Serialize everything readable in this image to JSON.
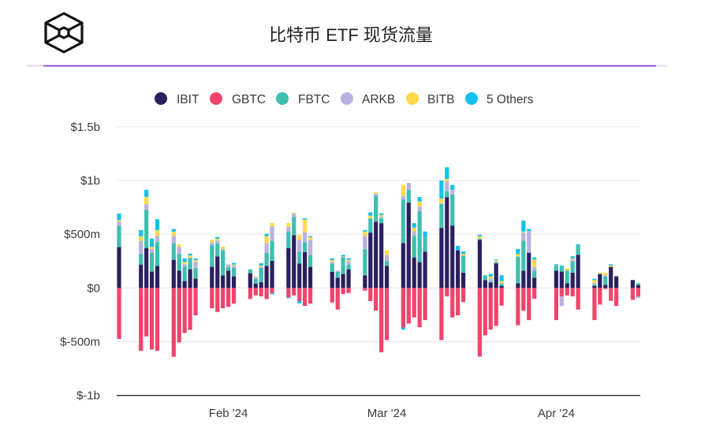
{
  "header": {
    "title": "比特币 ETF 现货流量",
    "logo": "hexagon-cube-logo"
  },
  "colors": {
    "accent_line": "#8a1fd6",
    "accent_line_light": "#e2c2f5"
  },
  "chart_data": {
    "type": "bar",
    "stacked": true,
    "title": "比特币 ETF 现货流量",
    "unit": "$M",
    "ylim": [
      -1000,
      1500
    ],
    "yticks": [
      {
        "value": 1500,
        "label": "$1.5b"
      },
      {
        "value": 1000,
        "label": "$1b"
      },
      {
        "value": 500,
        "label": "$500m"
      },
      {
        "value": 0,
        "label": "$0"
      },
      {
        "value": -500,
        "label": "$-500m"
      },
      {
        "value": -1000,
        "label": "$-1b"
      }
    ],
    "xticks": [
      {
        "date": "2024-02-01",
        "label": "Feb '24"
      },
      {
        "date": "2024-03-01",
        "label": "Mar '24"
      },
      {
        "date": "2024-04-01",
        "label": "Apr '24"
      }
    ],
    "grid": true,
    "legend_position": "top",
    "series": [
      {
        "name": "IBIT",
        "color": "#2a2060",
        "values": [
          382,
          218,
          372,
          152,
          206,
          262,
          162,
          64,
          174,
          88,
          198,
          294,
          118,
          162,
          108,
          137,
          39,
          54,
          206,
          252,
          372,
          492,
          228,
          333,
          196,
          149,
          96,
          130,
          174,
          118,
          515,
          617,
          603,
          206,
          417,
          794,
          284,
          240,
          338,
          559,
          845,
          581,
          350,
          142,
          448,
          74,
          51,
          228,
          20,
          44,
          162,
          328,
          96,
          162,
          152,
          44,
          142,
          309,
          20,
          130,
          29,
          196,
          108,
          74,
          27
        ]
      },
      {
        "name": "GBTC",
        "color": "#f0446a",
        "values": [
          -475,
          -585,
          -451,
          -573,
          -585,
          -640,
          -507,
          -419,
          -390,
          -255,
          -189,
          -223,
          -189,
          -176,
          -145,
          -103,
          -69,
          -78,
          -103,
          -47,
          -88,
          -69,
          -122,
          -167,
          -145,
          -135,
          -201,
          -56,
          -47,
          -25,
          -122,
          -211,
          -598,
          -485,
          -368,
          -331,
          -274,
          -365,
          -299,
          -485,
          -78,
          -274,
          -255,
          -132,
          -639,
          -441,
          -387,
          -353,
          -164,
          -346,
          -211,
          -299,
          -100,
          -299,
          -78,
          -69,
          -78,
          -201,
          -299,
          -154,
          -10,
          -120,
          -167,
          -110,
          -78
        ]
      },
      {
        "name": "FBTC",
        "color": "#3dbfb0",
        "values": [
          196,
          98,
          353,
          176,
          220,
          154,
          154,
          135,
          103,
          98,
          203,
          122,
          233,
          32,
          78,
          37,
          44,
          132,
          122,
          186,
          152,
          167,
          110,
          93,
          110,
          78,
          54,
          154,
          44,
          243,
          132,
          240,
          44,
          44,
          407,
          118,
          201,
          473,
          132,
          223,
          56,
          287,
          0,
          157,
          10,
          44,
          10,
          12,
          22,
          250,
          277,
          0,
          66,
          42,
          44,
          118,
          108,
          88,
          10,
          0,
          78,
          0,
          0,
          0,
          7
        ]
      },
      {
        "name": "ARKB",
        "color": "#b9b1e2",
        "values": [
          42,
          122,
          54,
          34,
          59,
          69,
          66,
          22,
          5,
          56,
          22,
          25,
          12,
          25,
          20,
          0,
          17,
          10,
          88,
          132,
          44,
          32,
          110,
          91,
          142,
          15,
          12,
          12,
          32,
          122,
          0,
          20,
          15,
          56,
          32,
          66,
          42,
          44,
          0,
          7,
          88,
          47,
          0,
          0,
          0,
          0,
          25,
          7,
          0,
          0,
          76,
          201,
          32,
          7,
          -91,
          0,
          15,
          0,
          15,
          0,
          10,
          0,
          5,
          0,
          -15
        ]
      },
      {
        "name": "BITB",
        "color": "#fcd94a",
        "values": [
          12,
          42,
          69,
          20,
          54,
          39,
          25,
          20,
          20,
          17,
          25,
          17,
          20,
          0,
          12,
          0,
          7,
          12,
          66,
          34,
          37,
          10,
          47,
          120,
          25,
          17,
          0,
          0,
          12,
          42,
          25,
          15,
          17,
          44,
          103,
          0,
          34,
          47,
          0,
          44,
          25,
          0,
          0,
          17,
          22,
          0,
          20,
          12,
          22,
          22,
          10,
          0,
          71,
          0,
          0,
          22,
          10,
          0,
          29,
          12,
          25,
          12,
          0,
          0,
          0
        ]
      },
      {
        "name": "5 Others",
        "color": "#11c2ee",
        "values": [
          61,
          59,
          66,
          78,
          100,
          25,
          0,
          34,
          17,
          15,
          0,
          17,
          0,
          0,
          15,
          0,
          0,
          22,
          22,
          -12,
          -8,
          0,
          -22,
          12,
          10,
          17,
          0,
          12,
          15,
          15,
          32,
          0,
          15,
          0,
          -20,
          0,
          42,
          42,
          56,
          167,
          110,
          44,
          42,
          25,
          15,
          0,
          25,
          5,
          54,
          47,
          103,
          20,
          20,
          10,
          12,
          0,
          20,
          10,
          12,
          0,
          0,
          12,
          0,
          0,
          10
        ]
      }
    ],
    "x": [
      "2024-01-12",
      "2024-01-16",
      "2024-01-17",
      "2024-01-18",
      "2024-01-19",
      "2024-01-22",
      "2024-01-23",
      "2024-01-24",
      "2024-01-25",
      "2024-01-26",
      "2024-01-29",
      "2024-01-30",
      "2024-01-31",
      "2024-02-01",
      "2024-02-02",
      "2024-02-05",
      "2024-02-06",
      "2024-02-07",
      "2024-02-08",
      "2024-02-09",
      "2024-02-12",
      "2024-02-13",
      "2024-02-14",
      "2024-02-15",
      "2024-02-16",
      "2024-02-20",
      "2024-02-21",
      "2024-02-22",
      "2024-02-23",
      "2024-02-26",
      "2024-02-27",
      "2024-02-28",
      "2024-02-29",
      "2024-03-01",
      "2024-03-04",
      "2024-03-05",
      "2024-03-06",
      "2024-03-07",
      "2024-03-08",
      "2024-03-11",
      "2024-03-12",
      "2024-03-13",
      "2024-03-14",
      "2024-03-15",
      "2024-03-18",
      "2024-03-19",
      "2024-03-20",
      "2024-03-21",
      "2024-03-22",
      "2024-03-25",
      "2024-03-26",
      "2024-03-27",
      "2024-03-28",
      "2024-04-01",
      "2024-04-02",
      "2024-04-03",
      "2024-04-04",
      "2024-04-05",
      "2024-04-08",
      "2024-04-09",
      "2024-04-10",
      "2024-04-11",
      "2024-04-12",
      "2024-04-15",
      "2024-04-16"
    ]
  }
}
